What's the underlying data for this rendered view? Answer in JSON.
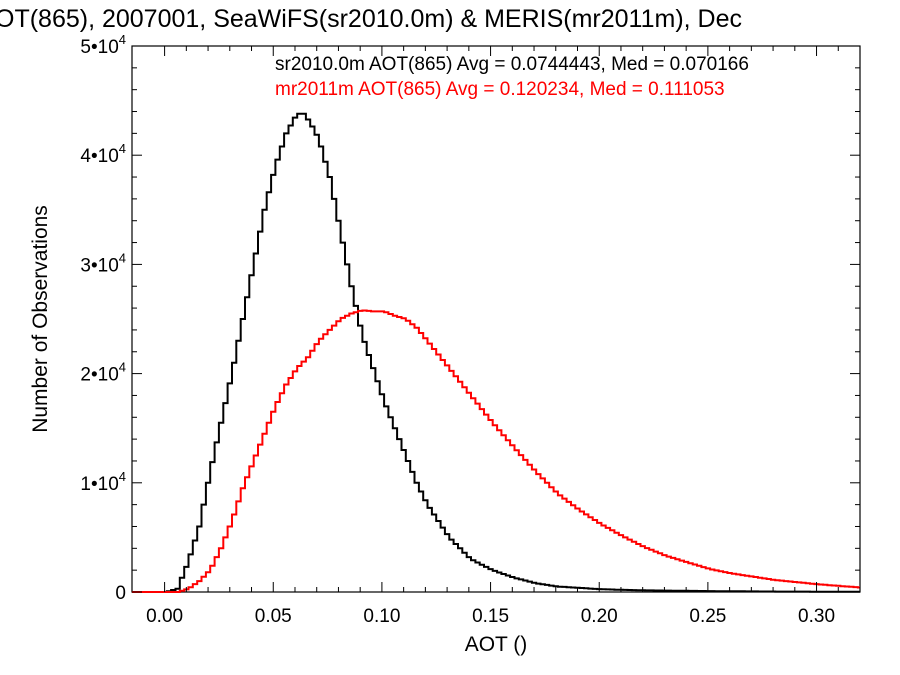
{
  "chart_data": {
    "type": "line",
    "title": "OT(865), 2007001, SeaWiFS(sr2010.0m) & MERIS(mr2011m), Dec",
    "xlabel": "AOT ()",
    "ylabel": "Number of Observations",
    "xlim": [
      -0.015,
      0.32
    ],
    "ylim": [
      0,
      50000
    ],
    "x_ticks": [
      0.0,
      0.05,
      0.1,
      0.15,
      0.2,
      0.25,
      0.3
    ],
    "x_tick_labels": [
      "0.00",
      "0.05",
      "0.10",
      "0.15",
      "0.20",
      "0.25",
      "0.30"
    ],
    "y_ticks": [
      0,
      10000,
      20000,
      30000,
      40000,
      50000
    ],
    "y_tick_labels": [
      {
        "base": "0",
        "exp": ""
      },
      {
        "base": "1•10",
        "exp": "4"
      },
      {
        "base": "2•10",
        "exp": "4"
      },
      {
        "base": "3•10",
        "exp": "4"
      },
      {
        "base": "4•10",
        "exp": "4"
      },
      {
        "base": "5•10",
        "exp": "4"
      }
    ],
    "grid": false,
    "step": true,
    "series": [
      {
        "name": "sr2010.0m",
        "label": "sr2010.0m AOT(865) Avg = 0.0744443, Med = 0.070166",
        "color": "#000000",
        "x": [
          -0.015,
          0.0,
          0.005,
          0.01,
          0.015,
          0.02,
          0.025,
          0.03,
          0.035,
          0.04,
          0.045,
          0.05,
          0.055,
          0.06,
          0.063,
          0.066,
          0.07,
          0.075,
          0.08,
          0.085,
          0.09,
          0.095,
          0.1,
          0.105,
          0.11,
          0.115,
          0.12,
          0.125,
          0.13,
          0.135,
          0.14,
          0.15,
          0.16,
          0.17,
          0.18,
          0.2,
          0.22,
          0.25,
          0.28,
          0.32
        ],
        "y": [
          0,
          0,
          300,
          2800,
          6000,
          11000,
          15500,
          20000,
          25000,
          30000,
          35000,
          39000,
          42000,
          43800,
          43800,
          43000,
          41500,
          38000,
          33000,
          28000,
          23500,
          20500,
          17500,
          15000,
          12500,
          10000,
          8000,
          6500,
          5000,
          4000,
          3000,
          2000,
          1300,
          800,
          500,
          250,
          150,
          80,
          40,
          20
        ]
      },
      {
        "name": "mr2011m",
        "label": "mr2011m AOT(865) Avg = 0.120234, Med = 0.111053",
        "color": "#ff0000",
        "x": [
          -0.015,
          0.005,
          0.01,
          0.015,
          0.02,
          0.025,
          0.03,
          0.035,
          0.04,
          0.045,
          0.05,
          0.055,
          0.06,
          0.065,
          0.07,
          0.075,
          0.08,
          0.085,
          0.09,
          0.095,
          0.1,
          0.105,
          0.11,
          0.115,
          0.12,
          0.13,
          0.14,
          0.15,
          0.16,
          0.17,
          0.18,
          0.19,
          0.2,
          0.21,
          0.22,
          0.23,
          0.24,
          0.25,
          0.26,
          0.27,
          0.28,
          0.29,
          0.3,
          0.31,
          0.32
        ],
        "y": [
          0,
          0,
          300,
          1000,
          2000,
          4000,
          6500,
          9500,
          12000,
          14500,
          17000,
          19000,
          20500,
          21500,
          23000,
          24000,
          25000,
          25500,
          25800,
          25700,
          25700,
          25300,
          25000,
          24200,
          23000,
          20500,
          18000,
          15500,
          13200,
          11000,
          9000,
          7500,
          6200,
          5100,
          4100,
          3300,
          2700,
          2100,
          1700,
          1400,
          1100,
          900,
          700,
          550,
          400
        ]
      }
    ]
  }
}
